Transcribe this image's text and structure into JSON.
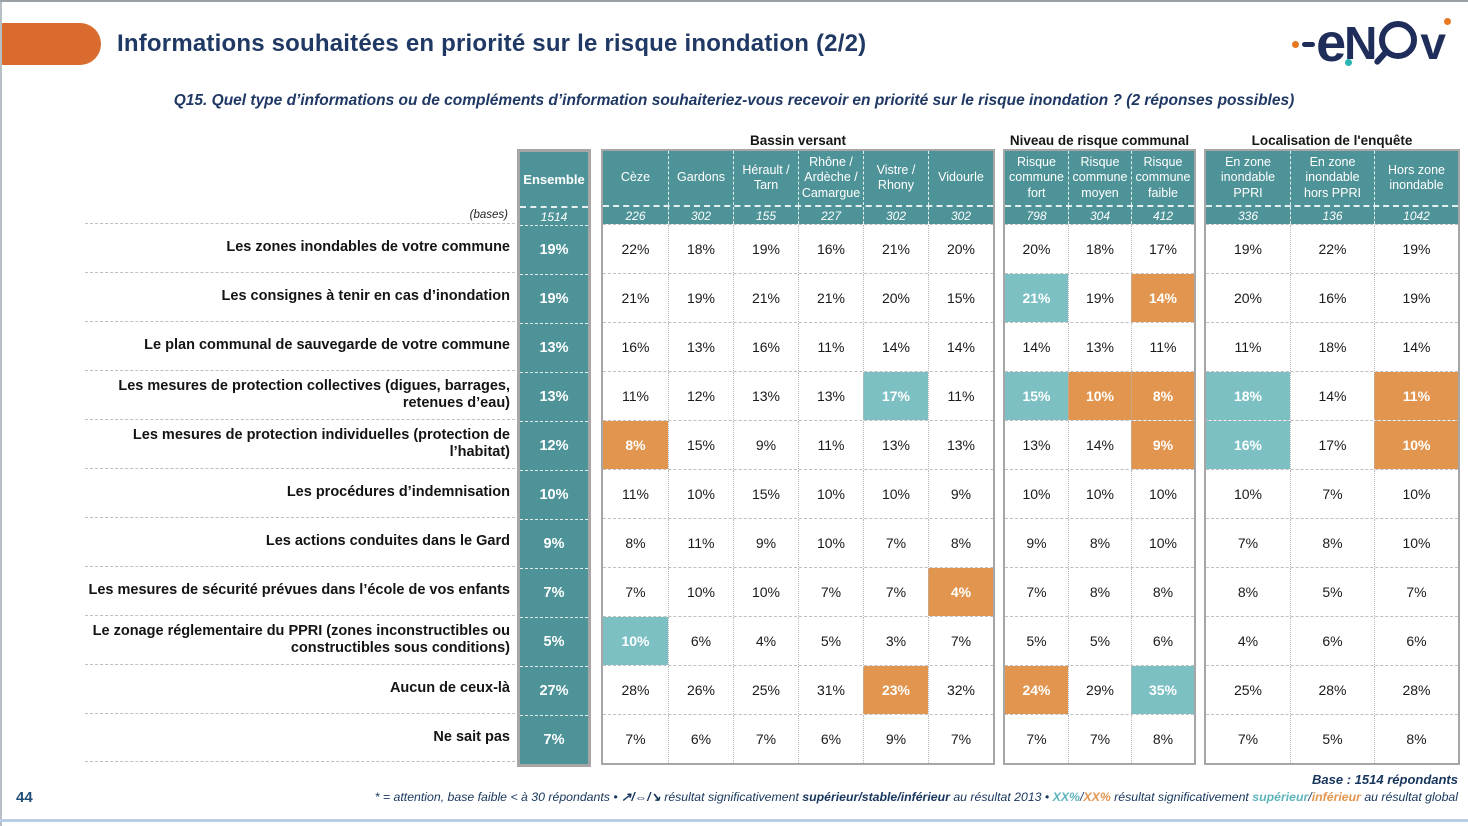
{
  "header": {
    "title": "Informations souhaitées en priorité sur le risque inondation (2/2)",
    "logo_text": "enov"
  },
  "question": "Q15. Quel type d’informations ou de compléments d’information souhaiteriez-vous recevoir en priorité sur le risque inondation ? (2 réponses possibles)",
  "colors": {
    "accent_orange": "#d96b2f",
    "teal_dark": "#4e9398",
    "teal_highlight": "#7cc0c4",
    "orange_highlight": "#e2954e",
    "navy": "#1f3864",
    "footer_line": "#b9cde5"
  },
  "table": {
    "bases_label": "(bases)",
    "ensemble": {
      "label": "Ensemble",
      "base": "1514"
    },
    "groups": [
      {
        "title": "Bassin versant",
        "columns": [
          {
            "label": "Cèze",
            "base": "226"
          },
          {
            "label": "Gardons",
            "base": "302"
          },
          {
            "label": "Hérault / Tarn",
            "base": "155"
          },
          {
            "label": "Rhône / Ardèche / Camargue",
            "base": "227"
          },
          {
            "label": "Vistre / Rhony",
            "base": "302"
          },
          {
            "label": "Vidourle",
            "base": "302"
          }
        ]
      },
      {
        "title": "Niveau de risque communal",
        "columns": [
          {
            "label": "Risque commune fort",
            "base": "798"
          },
          {
            "label": "Risque commune moyen",
            "base": "304"
          },
          {
            "label": "Risque commune faible",
            "base": "412"
          }
        ]
      },
      {
        "title": "Localisation de l'enquête",
        "columns": [
          {
            "label": "En zone inondable PPRI",
            "base": "336"
          },
          {
            "label": "En zone inondable hors PPRI",
            "base": "136"
          },
          {
            "label": "Hors zone inondable",
            "base": "1042"
          }
        ]
      }
    ],
    "rows": [
      {
        "label": "Les zones inondables de votre commune",
        "ensemble": "19%",
        "values": [
          "22%",
          "18%",
          "19%",
          "16%",
          "21%",
          "20%",
          "20%",
          "18%",
          "17%",
          "19%",
          "22%",
          "19%"
        ],
        "marks": [
          "",
          "",
          "",
          "",
          "",
          "",
          "",
          "",
          "",
          "",
          "",
          ""
        ]
      },
      {
        "label": "Les consignes à tenir en cas d’inondation",
        "ensemble": "19%",
        "values": [
          "21%",
          "19%",
          "21%",
          "21%",
          "20%",
          "15%",
          "21%",
          "19%",
          "14%",
          "20%",
          "16%",
          "19%"
        ],
        "marks": [
          "",
          "",
          "",
          "",
          "",
          "",
          "t",
          "",
          "o",
          "",
          "",
          ""
        ]
      },
      {
        "label": "Le plan communal de sauvegarde de votre commune",
        "ensemble": "13%",
        "values": [
          "16%",
          "13%",
          "16%",
          "11%",
          "14%",
          "14%",
          "14%",
          "13%",
          "11%",
          "11%",
          "18%",
          "14%"
        ],
        "marks": [
          "",
          "",
          "",
          "",
          "",
          "",
          "",
          "",
          "",
          "",
          "",
          ""
        ]
      },
      {
        "label": "Les mesures de protection collectives (digues, barrages, retenues d’eau)",
        "ensemble": "13%",
        "values": [
          "11%",
          "12%",
          "13%",
          "13%",
          "17%",
          "11%",
          "15%",
          "10%",
          "8%",
          "18%",
          "14%",
          "11%"
        ],
        "marks": [
          "",
          "",
          "",
          "",
          "t",
          "",
          "t",
          "o",
          "o",
          "t",
          "",
          "o"
        ]
      },
      {
        "label": "Les mesures de protection individuelles (protection de l’habitat)",
        "ensemble": "12%",
        "values": [
          "8%",
          "15%",
          "9%",
          "11%",
          "13%",
          "13%",
          "13%",
          "14%",
          "9%",
          "16%",
          "17%",
          "10%"
        ],
        "marks": [
          "o",
          "",
          "",
          "",
          "",
          "",
          "",
          "",
          "o",
          "t",
          "",
          "o"
        ]
      },
      {
        "label": "Les procédures d’indemnisation",
        "ensemble": "10%",
        "values": [
          "11%",
          "10%",
          "15%",
          "10%",
          "10%",
          "9%",
          "10%",
          "10%",
          "10%",
          "10%",
          "7%",
          "10%"
        ],
        "marks": [
          "",
          "",
          "",
          "",
          "",
          "",
          "",
          "",
          "",
          "",
          "",
          ""
        ]
      },
      {
        "label": "Les actions conduites dans le Gard",
        "ensemble": "9%",
        "values": [
          "8%",
          "11%",
          "9%",
          "10%",
          "7%",
          "8%",
          "9%",
          "8%",
          "10%",
          "7%",
          "8%",
          "10%"
        ],
        "marks": [
          "",
          "",
          "",
          "",
          "",
          "",
          "",
          "",
          "",
          "",
          "",
          ""
        ]
      },
      {
        "label": "Les mesures de sécurité prévues dans l’école de vos enfants",
        "ensemble": "7%",
        "values": [
          "7%",
          "10%",
          "10%",
          "7%",
          "7%",
          "4%",
          "7%",
          "8%",
          "8%",
          "8%",
          "5%",
          "7%"
        ],
        "marks": [
          "",
          "",
          "",
          "",
          "",
          "o",
          "",
          "",
          "",
          "",
          "",
          ""
        ]
      },
      {
        "label": "Le zonage réglementaire du PPRI (zones inconstructibles ou constructibles sous conditions)",
        "ensemble": "5%",
        "values": [
          "10%",
          "6%",
          "4%",
          "5%",
          "3%",
          "7%",
          "5%",
          "5%",
          "6%",
          "4%",
          "6%",
          "6%"
        ],
        "marks": [
          "t",
          "",
          "",
          "",
          "",
          "",
          "",
          "",
          "",
          "",
          "",
          ""
        ]
      },
      {
        "label": "Aucun de ceux-là",
        "ensemble": "27%",
        "values": [
          "28%",
          "26%",
          "25%",
          "31%",
          "23%",
          "32%",
          "24%",
          "29%",
          "35%",
          "25%",
          "28%",
          "28%"
        ],
        "marks": [
          "",
          "",
          "",
          "",
          "o",
          "",
          "o",
          "",
          "t",
          "",
          "",
          ""
        ]
      },
      {
        "label": "Ne sait pas",
        "ensemble": "7%",
        "values": [
          "7%",
          "6%",
          "7%",
          "6%",
          "9%",
          "7%",
          "7%",
          "7%",
          "8%",
          "7%",
          "5%",
          "8%"
        ],
        "marks": [
          "",
          "",
          "",
          "",
          "",
          "",
          "",
          "",
          "",
          "",
          "",
          ""
        ]
      }
    ]
  },
  "footer": {
    "page_number": "44",
    "base_note": "Base : 1514 répondants",
    "footnote_segments": [
      {
        "t": "* = attention, base faible < à 30 répondants • "
      },
      {
        "t": "↗/⇔/↘ ",
        "b": true
      },
      {
        "t": "résultat significativement "
      },
      {
        "t": "supérieur/stable/inférieur",
        "b": true
      },
      {
        "t": " au résultat 2013 • "
      },
      {
        "t": "XX%",
        "c": "teal",
        "b": true
      },
      {
        "t": "/"
      },
      {
        "t": "XX%",
        "c": "orange",
        "b": true
      },
      {
        "t": " résultat significativement "
      },
      {
        "t": "supérieur",
        "c": "teal",
        "b": true
      },
      {
        "t": "/"
      },
      {
        "t": "inférieur",
        "c": "orange",
        "b": true
      },
      {
        "t": " au résultat global"
      }
    ]
  }
}
